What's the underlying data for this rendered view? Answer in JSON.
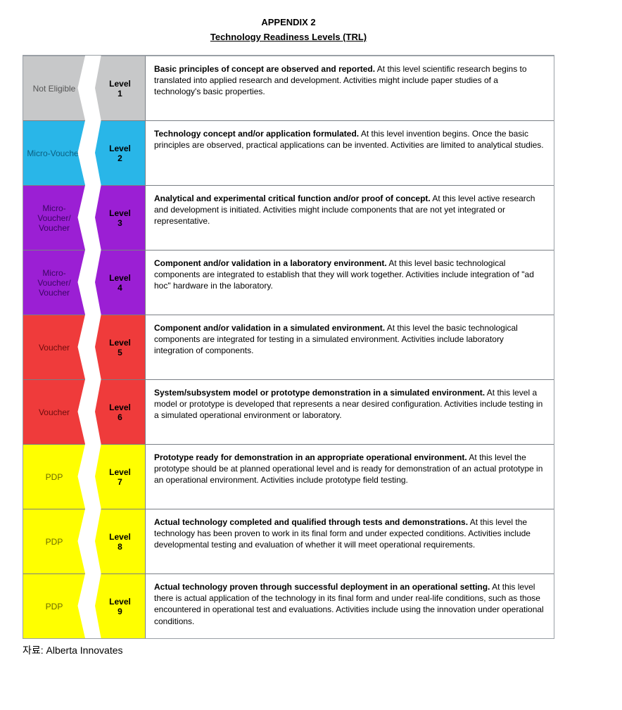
{
  "header": {
    "appendix": "APPENDIX 2",
    "subtitle": "Technology Readiness Levels (TRL)"
  },
  "colors": {
    "grey": "#c7c8c9",
    "cyan": "#29b6e8",
    "purple": "#9b1fd4",
    "red": "#ef3b3b",
    "yellow": "#ffff00",
    "text_default": "#000000",
    "text_on_purple": "#3a0663",
    "text_on_grey": "#555555",
    "text_on_cyan": "#0a5f80",
    "text_on_red": "#6e0d0d",
    "text_on_yellow": "#6b6b00"
  },
  "levels": [
    {
      "category": "Not Eligible",
      "level_label": "Level",
      "level_num": "1",
      "color_key": "grey",
      "cat_text_key": "text_on_grey",
      "bold": "Basic principles of concept are observed and reported.",
      "rest": " At this level scientific research begins to translated into applied research and development. Activities might include paper studies of a technology's basic properties."
    },
    {
      "category": "Micro-Voucher",
      "level_label": "Level",
      "level_num": "2",
      "color_key": "cyan",
      "cat_text_key": "text_on_cyan",
      "bold": "Technology concept and/or application formulated.",
      "rest": " At this level invention begins. Once the basic principles are observed, practical applications can be invented. Activities are limited to analytical studies."
    },
    {
      "category": "Micro-Voucher/ Voucher",
      "level_label": "Level",
      "level_num": "3",
      "color_key": "purple",
      "cat_text_key": "text_on_purple",
      "bold": "Analytical and experimental critical function and/or proof of concept.",
      "rest": " At this level active research and development is initiated. Activities might include components that are not yet integrated or representative."
    },
    {
      "category": "Micro-Voucher/ Voucher",
      "level_label": "Level",
      "level_num": "4",
      "color_key": "purple",
      "cat_text_key": "text_on_purple",
      "bold": "Component and/or validation in a laboratory environment.",
      "rest": " At this level basic technological components are integrated to establish that they will work together. Activities include integration of \"ad hoc\" hardware in the laboratory."
    },
    {
      "category": "Voucher",
      "level_label": "Level",
      "level_num": "5",
      "color_key": "red",
      "cat_text_key": "text_on_red",
      "bold": "Component and/or validation in a simulated environment.",
      "rest": " At this level the basic technological components are integrated for testing in a simulated environment. Activities include laboratory integration of components."
    },
    {
      "category": "Voucher",
      "level_label": "Level",
      "level_num": "6",
      "color_key": "red",
      "cat_text_key": "text_on_red",
      "bold": "System/subsystem model or prototype demonstration in a simulated environment.",
      "rest": " At this level a model or prototype is developed that represents a near desired configuration. Activities include testing in a simulated operational environment or laboratory."
    },
    {
      "category": "PDP",
      "level_label": "Level",
      "level_num": "7",
      "color_key": "yellow",
      "cat_text_key": "text_on_yellow",
      "bold": "Prototype ready for demonstration in an appropriate operational environment.",
      "rest": " At this level the prototype should be at planned operational level and is ready for demonstration of an actual prototype in an operational environment. Activities include prototype field testing."
    },
    {
      "category": "PDP",
      "level_label": "Level",
      "level_num": "8",
      "color_key": "yellow",
      "cat_text_key": "text_on_yellow",
      "bold": "Actual technology completed and qualified through tests and demonstrations.",
      "rest": " At this level the technology has been proven to work in its final form and under expected conditions. Activities include developmental testing and evaluation of whether it will meet operational requirements."
    },
    {
      "category": "PDP",
      "level_label": "Level",
      "level_num": "9",
      "color_key": "yellow",
      "cat_text_key": "text_on_yellow",
      "bold": "Actual technology proven through successful deployment in an operational setting.",
      "rest": " At this level there is actual application of the technology in its final form and under real-life conditions, such as those encountered in operational test and evaluations. Activities include using the innovation under operational conditions."
    }
  ],
  "source": "자료: Alberta Innovates"
}
